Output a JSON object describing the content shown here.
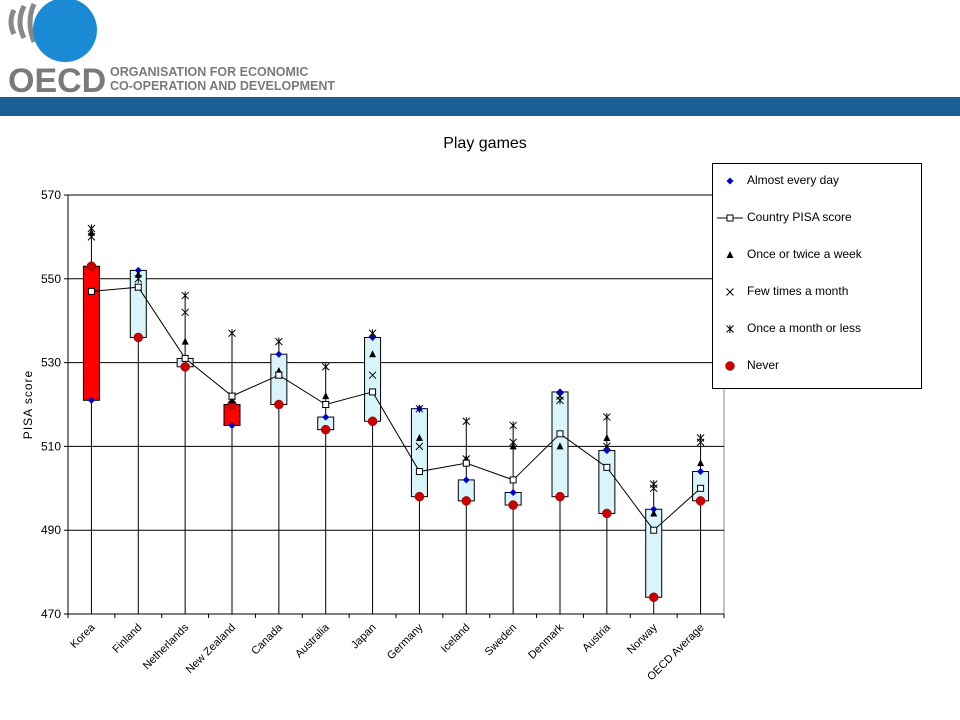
{
  "brand": {
    "logo_text": "OECD",
    "org_line1": "ORGANISATION FOR ECONOMIC",
    "org_line2": "CO-OPERATION AND DEVELOPMENT",
    "bar_color": "#1a5e96"
  },
  "chart_data": {
    "type": "box-range",
    "title": "Play games",
    "ylabel": "PISA score",
    "xlabel": "",
    "ylim": [
      470,
      570
    ],
    "yticks": [
      470,
      490,
      510,
      530,
      550,
      570
    ],
    "grid": true,
    "legend_position": "right",
    "categories": [
      "Korea",
      "Finland",
      "Netherlands",
      "New Zealand",
      "Canada",
      "Australia",
      "Japan",
      "Germany",
      "Iceland",
      "Sweden",
      "Denmark",
      "Austria",
      "Norway",
      "OECD Average"
    ],
    "series": [
      {
        "name": "Almost every day",
        "marker": "diamond",
        "color": "#0000cc",
        "values": [
          521,
          552,
          531,
          515,
          532,
          517,
          536,
          519,
          502,
          499,
          523,
          509,
          495,
          504
        ]
      },
      {
        "name": "Country PISA score",
        "marker": "square-open",
        "color": "#000000",
        "values": [
          547,
          548,
          531,
          522,
          527,
          520,
          523,
          504,
          506,
          502,
          513,
          505,
          490,
          500
        ]
      },
      {
        "name": "Once or twice a week",
        "marker": "triangle",
        "color": "#000000",
        "values": [
          561,
          551,
          535,
          521,
          528,
          522,
          532,
          512,
          507,
          510,
          510,
          512,
          494,
          506
        ]
      },
      {
        "name": "Few times a month",
        "marker": "x",
        "color": "#000000",
        "values": [
          560,
          548,
          542,
          522,
          527,
          520,
          527,
          510,
          507,
          511,
          522,
          510,
          500,
          511
        ]
      },
      {
        "name": "Once a month or less",
        "marker": "asterisk",
        "color": "#000000",
        "values": [
          562,
          550,
          546,
          537,
          535,
          529,
          537,
          519,
          516,
          515,
          521,
          517,
          501,
          512
        ]
      },
      {
        "name": "Never",
        "marker": "circle",
        "color": "#cc0000",
        "values": [
          553,
          536,
          529,
          520,
          520,
          514,
          516,
          498,
          497,
          496,
          498,
          494,
          474,
          497
        ]
      }
    ],
    "box_colors": {
      "above": "#d9f5fb",
      "below": "#ff0000",
      "border": "#000000"
    }
  }
}
